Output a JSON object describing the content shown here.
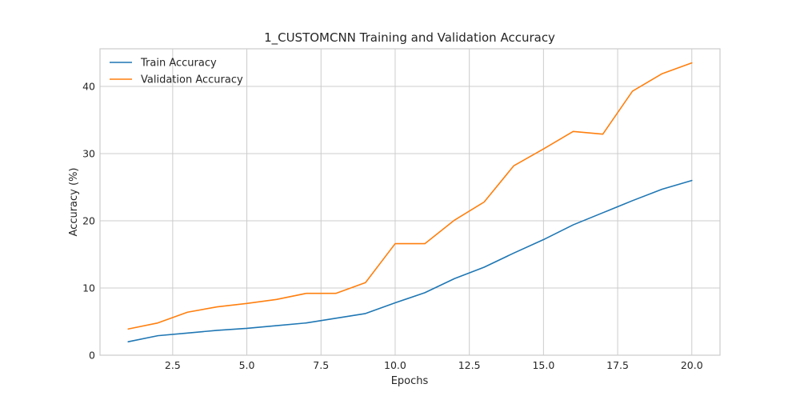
{
  "chart_data": {
    "type": "line",
    "title": "1_CUSTOMCNN Training and Validation Accuracy",
    "xlabel": "Epochs",
    "ylabel": "Accuracy (%)",
    "xlim": [
      0.05,
      20.95
    ],
    "ylim": [
      0,
      45.6
    ],
    "xticks": [
      2.5,
      5.0,
      7.5,
      10.0,
      12.5,
      15.0,
      17.5,
      20.0
    ],
    "xtick_labels": [
      "2.5",
      "5.0",
      "7.5",
      "10.0",
      "12.5",
      "15.0",
      "17.5",
      "20.0"
    ],
    "yticks": [
      0,
      10,
      20,
      30,
      40
    ],
    "ytick_labels": [
      "0",
      "10",
      "20",
      "30",
      "40"
    ],
    "grid": true,
    "legend_position": "top-left",
    "x": [
      1,
      2,
      3,
      4,
      5,
      6,
      7,
      8,
      9,
      10,
      11,
      12,
      13,
      14,
      15,
      16,
      17,
      18,
      19,
      20
    ],
    "series": [
      {
        "name": "Train Accuracy",
        "color": "#1f77b4",
        "values": [
          2.0,
          2.9,
          3.3,
          3.7,
          4.0,
          4.4,
          4.8,
          5.5,
          6.2,
          7.8,
          9.3,
          11.4,
          13.1,
          15.2,
          17.2,
          19.4,
          21.2,
          23.0,
          24.7,
          26.0
        ]
      },
      {
        "name": "Validation Accuracy",
        "color": "#ff7f0e",
        "values": [
          3.9,
          4.8,
          6.4,
          7.2,
          7.7,
          8.3,
          9.2,
          9.2,
          10.8,
          16.6,
          16.6,
          20.1,
          22.8,
          28.2,
          30.7,
          33.3,
          32.9,
          39.3,
          41.9,
          43.5
        ]
      }
    ]
  }
}
